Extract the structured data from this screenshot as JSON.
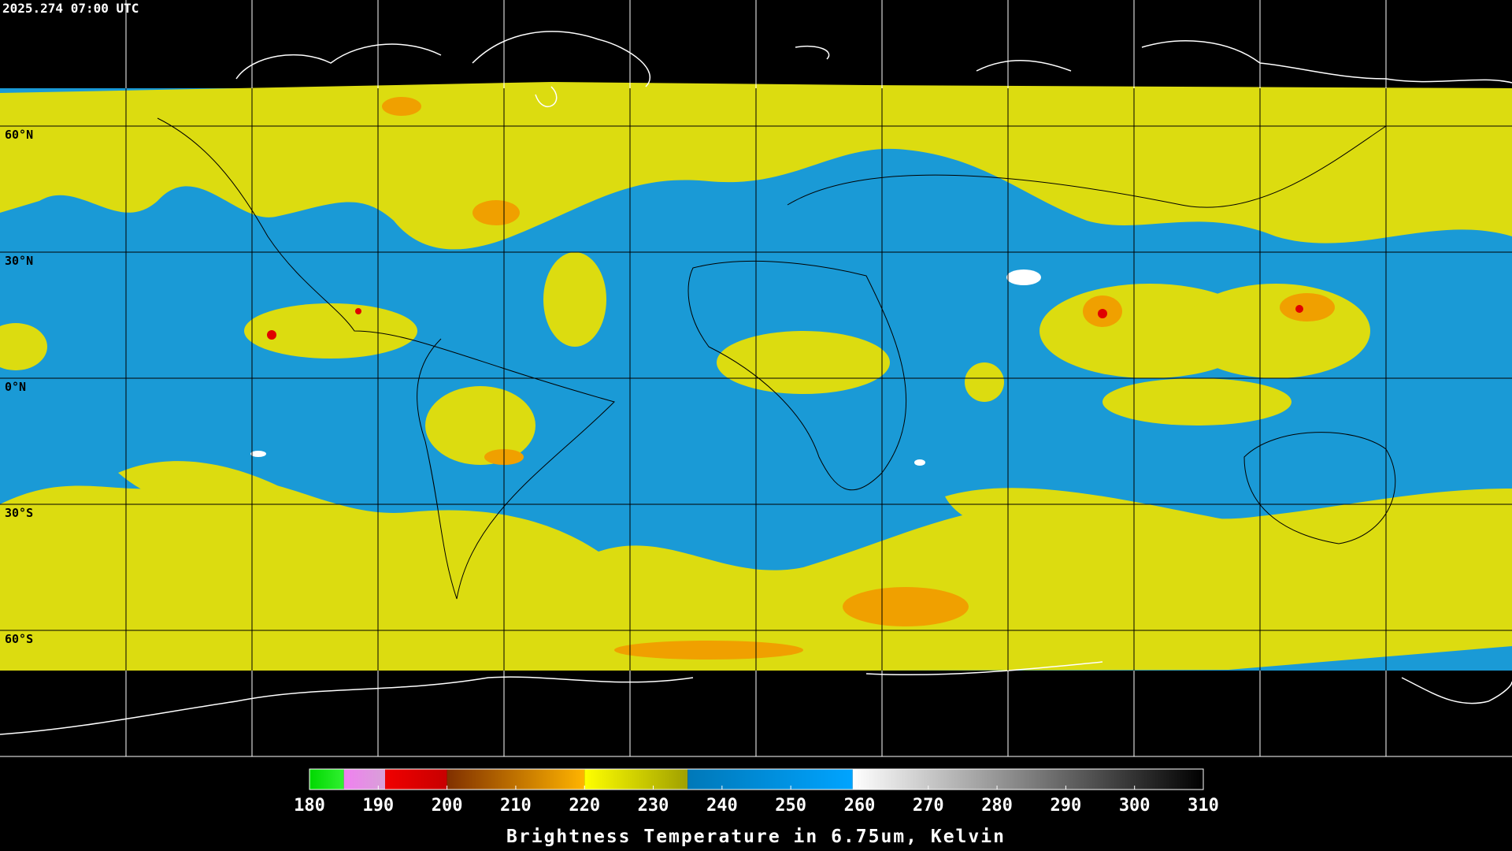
{
  "timestamp": "2025.274 07:00 UTC",
  "map": {
    "ylim": [
      90,
      -90
    ],
    "yticks": [
      {
        "value": 60,
        "label": "60°N"
      },
      {
        "value": 30,
        "label": "30°N"
      },
      {
        "value": 0,
        "label": "0°N"
      },
      {
        "value": -30,
        "label": "30°S"
      },
      {
        "value": -60,
        "label": "60°S"
      }
    ]
  },
  "colorbar": {
    "title": "Brightness Temperature in 6.75um, Kelvin",
    "lim": [
      180,
      310
    ],
    "ticks": [
      180,
      190,
      200,
      210,
      220,
      230,
      240,
      250,
      260,
      270,
      280,
      290,
      300,
      310
    ],
    "segments": [
      {
        "from": 180,
        "to": 185,
        "colors": [
          "#00d800",
          "#30f030"
        ]
      },
      {
        "from": 185,
        "to": 191,
        "colors": [
          "#f080f0",
          "#d8a0d8"
        ]
      },
      {
        "from": 191,
        "to": 200,
        "colors": [
          "#f00000",
          "#c80000"
        ]
      },
      {
        "from": 200,
        "to": 220,
        "colors": [
          "#803000",
          "#ffb400"
        ]
      },
      {
        "from": 220,
        "to": 235,
        "colors": [
          "#ffff00",
          "#a0a000"
        ]
      },
      {
        "from": 235,
        "to": 259,
        "colors": [
          "#0078b8",
          "#00a4ff"
        ]
      },
      {
        "from": 259,
        "to": 310,
        "colors": [
          "#ffffff",
          "#000000"
        ]
      }
    ]
  }
}
